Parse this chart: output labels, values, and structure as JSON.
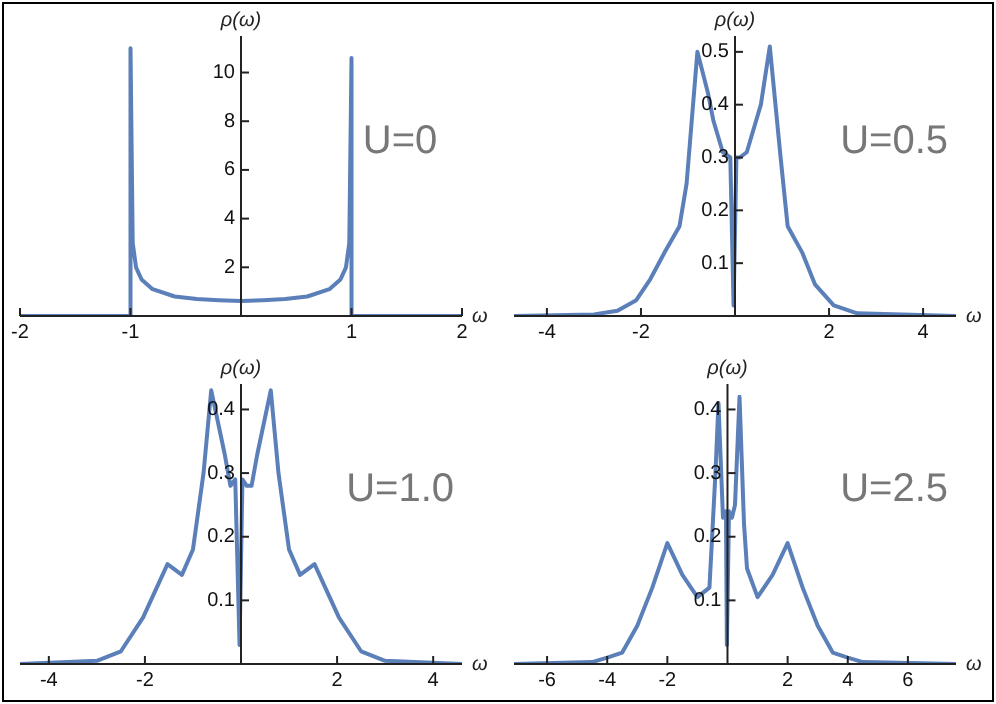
{
  "chart_data": [
    {
      "type": "line",
      "xlabel": "ω",
      "ylabel": "ρ(ω)",
      "annotations": [
        "U=0"
      ],
      "marker": "none",
      "xlim": [
        -2,
        2
      ],
      "ylim": [
        0,
        11.5
      ],
      "xticks": [
        -2,
        -1,
        1,
        2
      ],
      "yticks": [
        2,
        4,
        6,
        8,
        10
      ],
      "x": [
        -2,
        -1.5,
        -1,
        -1,
        -0.98,
        -0.95,
        -0.9,
        -0.8,
        -0.6,
        -0.4,
        -0.2,
        0,
        0.2,
        0.4,
        0.6,
        0.8,
        0.9,
        0.95,
        0.98,
        1,
        1,
        1.5,
        2
      ],
      "series": [
        {
          "color": "#5b7fb8",
          "values": [
            0,
            0,
            0,
            11,
            3,
            2,
            1.5,
            1.1,
            0.8,
            0.7,
            0.65,
            0.62,
            0.65,
            0.7,
            0.8,
            1.1,
            1.5,
            2,
            3,
            10.6,
            0,
            0,
            0
          ]
        }
      ]
    },
    {
      "type": "line",
      "xlabel": "ω",
      "ylabel": "ρ(ω)",
      "annotations": [
        "U=0.5"
      ],
      "marker": "none",
      "xlim": [
        -4.7,
        4.7
      ],
      "ylim": [
        0,
        0.53
      ],
      "xticks": [
        -4,
        -2,
        2,
        4
      ],
      "yticks": [
        0.1,
        0.2,
        0.3,
        0.4,
        0.5
      ],
      "x": [
        -4.7,
        -3,
        -2.5,
        -2.1,
        -1.8,
        -1.5,
        -1.18,
        -1.03,
        -0.8,
        -0.57,
        -0.46,
        -0.26,
        -0.1,
        -0.03,
        0.03,
        0.1,
        0.25,
        0.45,
        0.55,
        0.74,
        0.97,
        1.12,
        1.43,
        1.7,
        2.1,
        2.6,
        4.7
      ],
      "series": [
        {
          "color": "#5b7fb8",
          "values": [
            0,
            0.003,
            0.01,
            0.03,
            0.07,
            0.12,
            0.17,
            0.25,
            0.5,
            0.42,
            0.37,
            0.31,
            0.3,
            0.02,
            0.3,
            0.3,
            0.31,
            0.37,
            0.4,
            0.51,
            0.3,
            0.17,
            0.12,
            0.06,
            0.02,
            0.005,
            0
          ]
        }
      ]
    },
    {
      "type": "line",
      "xlabel": "ω",
      "ylabel": "ρ(ω)",
      "annotations": [
        "U=1.0"
      ],
      "marker": "none",
      "xlim": [
        -4.6,
        4.6
      ],
      "ylim": [
        0,
        0.44
      ],
      "xticks": [
        -4,
        -2,
        2,
        4
      ],
      "yticks": [
        0.1,
        0.2,
        0.3,
        0.4
      ],
      "x": [
        -4.6,
        -3,
        -2.5,
        -2.04,
        -1.53,
        -1.23,
        -1,
        -0.78,
        -0.62,
        -0.34,
        -0.22,
        -0.12,
        -0.03,
        0.03,
        0.12,
        0.22,
        0.34,
        0.62,
        0.78,
        1,
        1.23,
        1.53,
        2.04,
        2.5,
        3,
        4.6
      ],
      "series": [
        {
          "color": "#5b7fb8",
          "values": [
            0,
            0.005,
            0.02,
            0.073,
            0.157,
            0.14,
            0.18,
            0.3,
            0.43,
            0.33,
            0.28,
            0.29,
            0.03,
            0.29,
            0.28,
            0.28,
            0.33,
            0.43,
            0.3,
            0.18,
            0.14,
            0.157,
            0.073,
            0.02,
            0.005,
            0
          ]
        }
      ]
    },
    {
      "type": "line",
      "xlabel": "ω",
      "ylabel": "ρ(ω)",
      "annotations": [
        "U=2.5"
      ],
      "marker": "none",
      "xlim": [
        -7.1,
        7.6
      ],
      "ylim": [
        0,
        0.44
      ],
      "xticks": [
        -6,
        -4,
        -2,
        2,
        4,
        6
      ],
      "yticks": [
        0.1,
        0.2,
        0.3,
        0.4
      ],
      "x": [
        -7.1,
        -4.5,
        -4,
        -3.5,
        -3,
        -2.5,
        -2,
        -1.5,
        -1,
        -0.6,
        -0.4,
        -0.3,
        -0.15,
        -0.05,
        -0.02,
        0.05,
        0.15,
        0.25,
        0.4,
        0.55,
        0.65,
        1,
        1.5,
        2,
        2.5,
        3,
        3.5,
        4,
        4.5,
        7.6
      ],
      "series": [
        {
          "color": "#5b7fb8",
          "values": [
            0,
            0.003,
            0.01,
            0.018,
            0.06,
            0.12,
            0.19,
            0.14,
            0.105,
            0.12,
            0.3,
            0.41,
            0.23,
            0.24,
            0.03,
            0.24,
            0.23,
            0.25,
            0.42,
            0.22,
            0.15,
            0.105,
            0.14,
            0.19,
            0.12,
            0.06,
            0.018,
            0.01,
            0.003,
            0
          ]
        }
      ]
    }
  ]
}
